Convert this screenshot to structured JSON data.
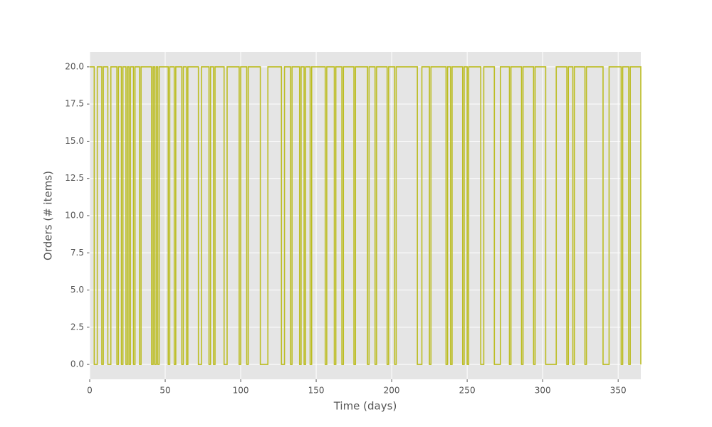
{
  "chart_data": {
    "type": "step",
    "xlabel": "Time (days)",
    "ylabel": "Orders (# items)",
    "series": [
      {
        "color": "#bcbd22",
        "x": [
          0,
          3,
          5,
          8,
          9,
          12,
          14,
          18,
          19,
          21,
          22,
          24,
          25,
          26,
          27,
          29,
          30,
          33,
          34,
          41,
          42,
          43,
          44,
          45,
          46,
          52,
          53,
          56,
          57,
          61,
          62,
          64,
          65,
          72,
          74,
          79,
          80,
          82,
          83,
          89,
          91,
          99,
          100,
          104,
          105,
          113,
          118,
          127,
          129,
          133,
          134,
          139,
          140,
          142,
          143,
          146,
          147,
          156,
          157,
          162,
          163,
          167,
          168,
          175,
          176,
          184,
          185,
          189,
          190,
          197,
          198,
          202,
          203,
          217,
          220,
          225,
          226,
          236,
          237,
          239,
          240,
          247,
          248,
          250,
          251,
          259,
          261,
          268,
          272,
          278,
          279,
          286,
          287,
          294,
          295,
          302,
          309,
          316,
          317,
          320,
          321,
          328,
          329,
          340,
          344,
          352,
          353,
          357,
          358,
          365
        ],
        "values": [
          20,
          0,
          20,
          0,
          20,
          0,
          20,
          0,
          20,
          0,
          20,
          0,
          20,
          0,
          20,
          0,
          20,
          0,
          20,
          0,
          20,
          0,
          20,
          0,
          20,
          0,
          20,
          0,
          20,
          0,
          20,
          0,
          20,
          0,
          20,
          0,
          20,
          0,
          20,
          0,
          20,
          0,
          20,
          0,
          20,
          0,
          20,
          0,
          20,
          0,
          20,
          0,
          20,
          0,
          20,
          0,
          20,
          0,
          20,
          0,
          20,
          0,
          20,
          0,
          20,
          0,
          20,
          0,
          20,
          0,
          20,
          0,
          20,
          0,
          20,
          0,
          20,
          0,
          20,
          0,
          20,
          0,
          20,
          0,
          20,
          0,
          20,
          0,
          20,
          0,
          20,
          0,
          20,
          0,
          20,
          0,
          20,
          0,
          20,
          0,
          20,
          0,
          20,
          0,
          20,
          0,
          20,
          0,
          20,
          0
        ]
      }
    ],
    "xlim": [
      0,
      365
    ],
    "xticks": [
      0,
      50,
      100,
      150,
      200,
      250,
      300,
      350
    ],
    "ylim": [
      -1,
      21
    ],
    "yticks": [
      {
        "value": 0,
        "label": "0.0"
      },
      {
        "value": 2.5,
        "label": "2.5"
      },
      {
        "value": 5,
        "label": "5.0"
      },
      {
        "value": 7.5,
        "label": "7.5"
      },
      {
        "value": 10,
        "label": "10.0"
      },
      {
        "value": 12.5,
        "label": "12.5"
      },
      {
        "value": 15,
        "label": "15.0"
      },
      {
        "value": 17.5,
        "label": "17.5"
      },
      {
        "value": 20,
        "label": "20.0"
      }
    ],
    "grid": true
  }
}
